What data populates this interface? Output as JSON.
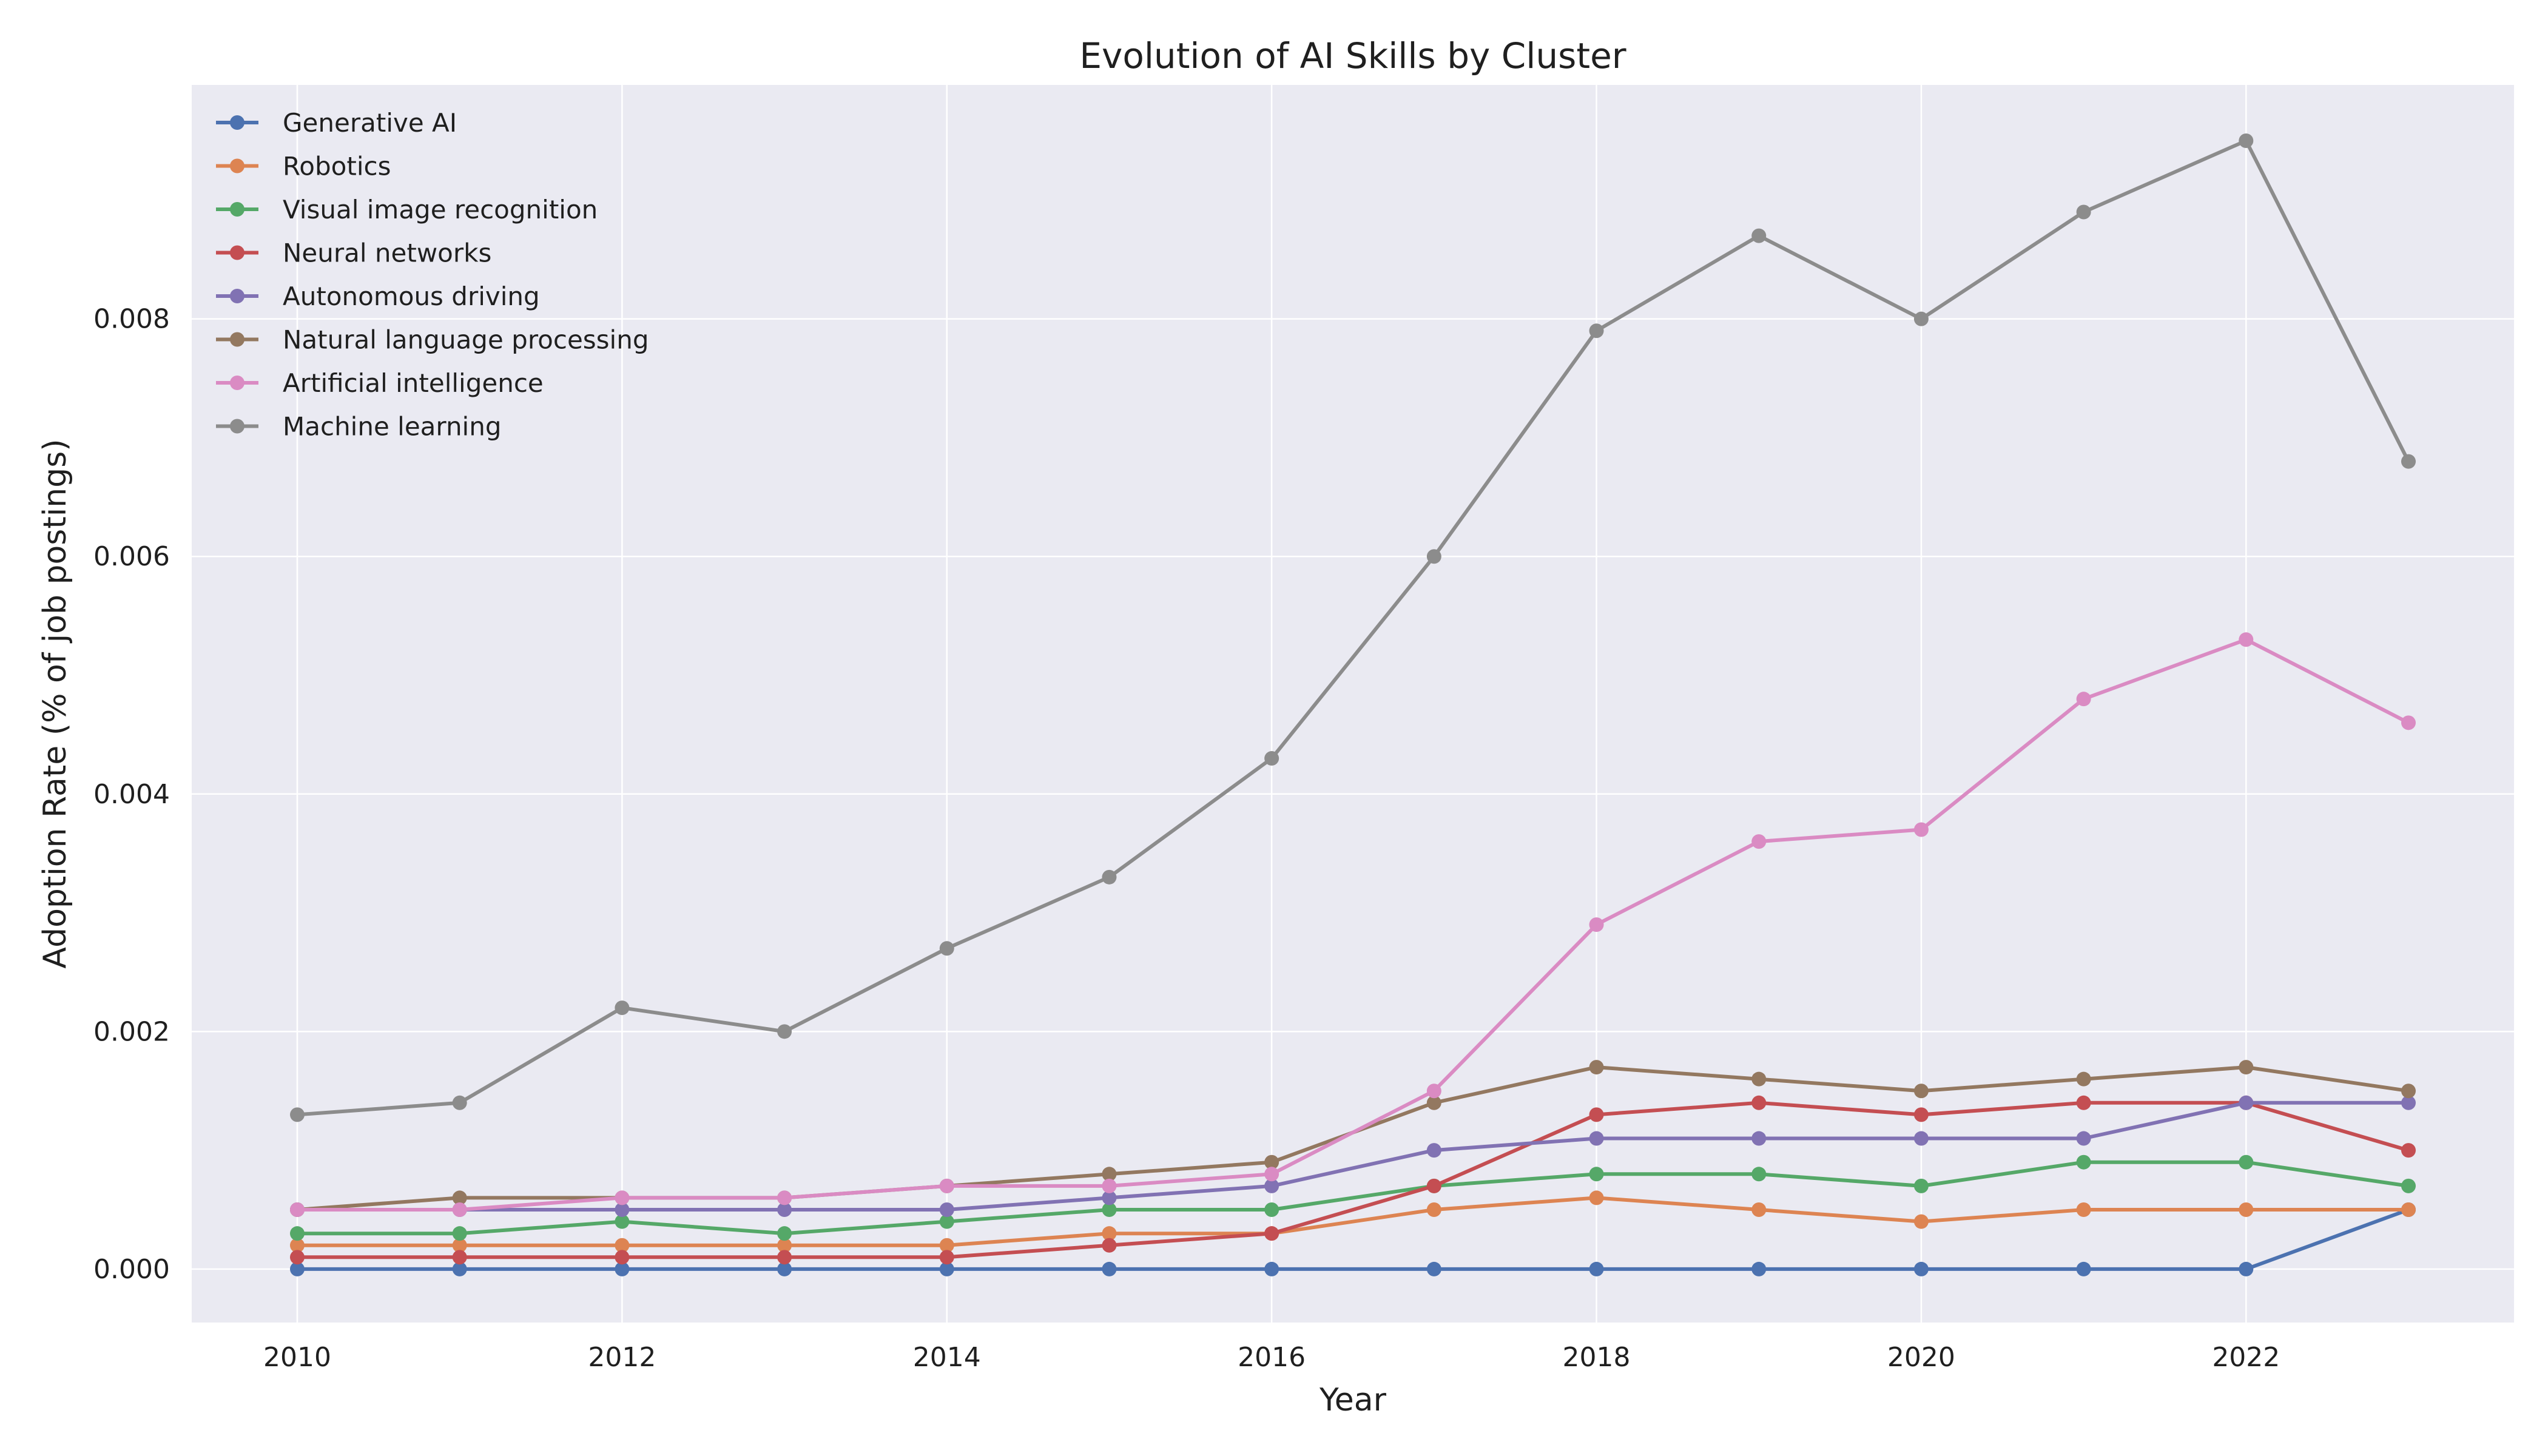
{
  "chart_data": {
    "type": "line",
    "title": "Evolution of AI Skills by Cluster",
    "xlabel": "Year",
    "ylabel": "Adoption Rate (% of job postings)",
    "x": [
      2010,
      2011,
      2012,
      2013,
      2014,
      2015,
      2016,
      2017,
      2018,
      2019,
      2020,
      2021,
      2022,
      2023
    ],
    "xticks": [
      "2010",
      "2012",
      "2014",
      "2016",
      "2018",
      "2020",
      "2022"
    ],
    "yticks": [
      "0.000",
      "0.002",
      "0.004",
      "0.006",
      "0.008"
    ],
    "xlim": [
      2009.35,
      2023.65
    ],
    "ylim": [
      -0.00045,
      0.00997
    ],
    "grid": true,
    "legend_position": "top-left",
    "series": [
      {
        "name": "Generative AI",
        "color": "#4c72b0",
        "values": [
          0.0,
          0.0,
          0.0,
          0.0,
          0.0,
          0.0,
          0.0,
          0.0,
          0.0,
          0.0,
          0.0,
          0.0,
          0.0,
          0.0005
        ]
      },
      {
        "name": "Robotics",
        "color": "#dd8452",
        "values": [
          0.0002,
          0.0002,
          0.0002,
          0.0002,
          0.0002,
          0.0003,
          0.0003,
          0.0005,
          0.0006,
          0.0005,
          0.0004,
          0.0005,
          0.0005,
          0.0005
        ]
      },
      {
        "name": "Visual image recognition",
        "color": "#55a868",
        "values": [
          0.0003,
          0.0003,
          0.0004,
          0.0003,
          0.0004,
          0.0005,
          0.0005,
          0.0007,
          0.0008,
          0.0008,
          0.0007,
          0.0009,
          0.0009,
          0.0007
        ]
      },
      {
        "name": "Neural networks",
        "color": "#c44e52",
        "values": [
          0.0001,
          0.0001,
          0.0001,
          0.0001,
          0.0001,
          0.0002,
          0.0003,
          0.0007,
          0.0013,
          0.0014,
          0.0013,
          0.0014,
          0.0014,
          0.001
        ]
      },
      {
        "name": "Autonomous driving",
        "color": "#8172b3",
        "values": [
          0.0005,
          0.0005,
          0.0005,
          0.0005,
          0.0005,
          0.0006,
          0.0007,
          0.001,
          0.0011,
          0.0011,
          0.0011,
          0.0011,
          0.0014,
          0.0014
        ]
      },
      {
        "name": "Natural language processing",
        "color": "#937860",
        "values": [
          0.0005,
          0.0006,
          0.0006,
          0.0006,
          0.0007,
          0.0008,
          0.0009,
          0.0014,
          0.0017,
          0.0016,
          0.0015,
          0.0016,
          0.0017,
          0.0015
        ]
      },
      {
        "name": "Artificial intelligence",
        "color": "#da8bc3",
        "values": [
          0.0005,
          0.0005,
          0.0006,
          0.0006,
          0.0007,
          0.0007,
          0.0008,
          0.0015,
          0.0029,
          0.0036,
          0.0037,
          0.0048,
          0.0053,
          0.0046
        ]
      },
      {
        "name": "Machine learning",
        "color": "#8c8c8c",
        "values": [
          0.0013,
          0.0014,
          0.0022,
          0.002,
          0.0027,
          0.0033,
          0.0043,
          0.006,
          0.0079,
          0.0087,
          0.008,
          0.0089,
          0.0095,
          0.0068
        ]
      }
    ]
  }
}
